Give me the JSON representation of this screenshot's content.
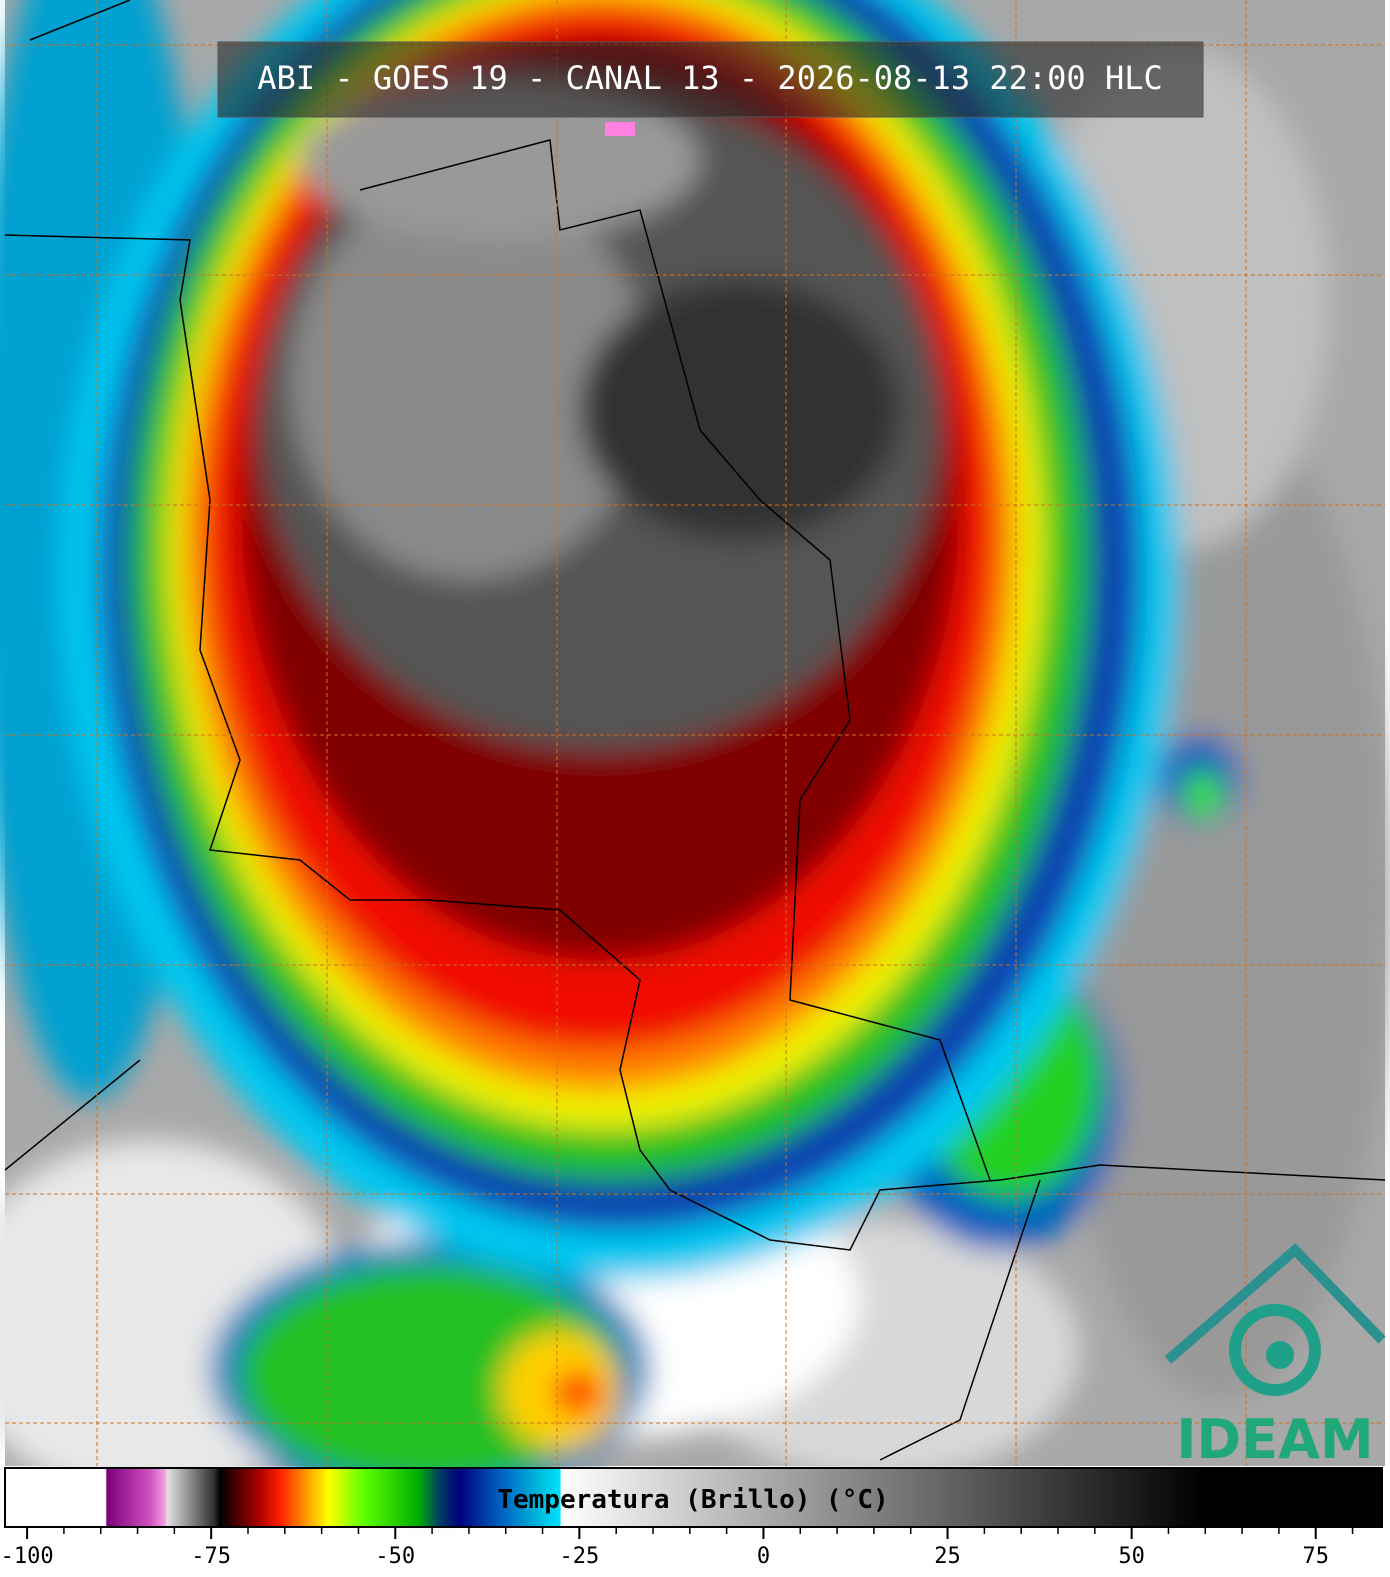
{
  "header": {
    "title": "ABI - GOES 19 - CANAL 13 - 2026-08-13 22:00 HLC"
  },
  "logo": {
    "text": "IDEAM"
  },
  "colorbar": {
    "label": "Temperatura (Brillo) (°C)",
    "range": [
      -103,
      84
    ],
    "ticks": [
      -100,
      -75,
      -50,
      -25,
      0,
      25,
      50,
      75
    ],
    "minor_ticks": [
      -95,
      -90,
      -85,
      -80,
      -70,
      -65,
      -60,
      -55,
      -45,
      -40,
      -35,
      -30,
      -20,
      -15,
      -10,
      -5,
      5,
      10,
      15,
      20,
      30,
      35,
      40,
      45,
      55,
      60,
      65,
      70,
      80
    ]
  }
}
